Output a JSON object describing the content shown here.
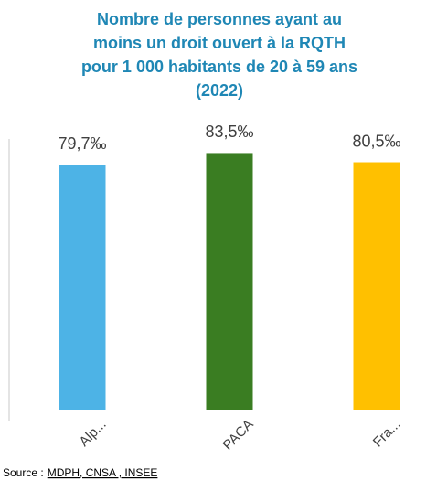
{
  "chart_data": {
    "type": "bar",
    "title": [
      "Nombre de personnes ayant au",
      "moins un droit ouvert à la RQTH",
      "pour 1 000 habitants de 20 à 59 ans",
      "(2022)"
    ],
    "categories": [
      "Alp...",
      "PACA",
      "Fra..."
    ],
    "values": [
      79.7,
      83.5,
      80.5
    ],
    "value_labels": [
      "79,7‰",
      "83,5‰",
      "80,5‰"
    ],
    "colors": [
      "#4db3e6",
      "#3a7d22",
      "#ffc000"
    ],
    "source": {
      "label": "Source :",
      "text": "MDPH, CNSA , INSEE"
    }
  }
}
